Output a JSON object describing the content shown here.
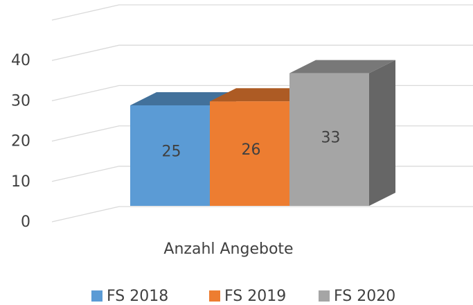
{
  "chart_data": {
    "type": "bar3d",
    "categories": [
      "Anzahl Angebote"
    ],
    "series": [
      {
        "name": "FS 2018",
        "color": "#5b9bd5",
        "values": [
          25
        ]
      },
      {
        "name": "FS 2019",
        "color": "#ed7d31",
        "values": [
          26
        ]
      },
      {
        "name": "FS 2020",
        "color": "#a5a5a5",
        "values": [
          33
        ]
      }
    ],
    "ylim": [
      0,
      50
    ],
    "yticks": [
      0,
      10,
      20,
      30,
      40
    ],
    "grid": true,
    "legend": "bottom"
  }
}
